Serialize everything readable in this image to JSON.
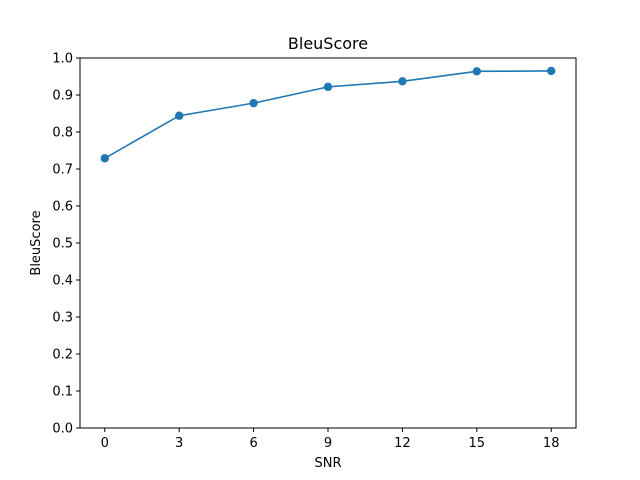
{
  "chart_data": {
    "type": "line",
    "title": "BleuScore",
    "xlabel": "SNR",
    "ylabel": "BleuScore",
    "x": [
      0,
      3,
      6,
      9,
      12,
      15,
      18
    ],
    "series": [
      {
        "values": [
          0.729,
          0.844,
          0.878,
          0.922,
          0.937,
          0.964,
          0.965
        ],
        "color": "#1f77b4",
        "marker": "circle"
      }
    ],
    "xticks": [
      "0",
      "3",
      "6",
      "9",
      "12",
      "15",
      "18"
    ],
    "yticks": [
      "0.0",
      "0.1",
      "0.2",
      "0.3",
      "0.4",
      "0.5",
      "0.6",
      "0.7",
      "0.8",
      "0.9",
      "1.0"
    ],
    "xlim": [
      -1,
      19
    ],
    "ylim": [
      0,
      1.0
    ],
    "grid": false,
    "legend": false
  }
}
